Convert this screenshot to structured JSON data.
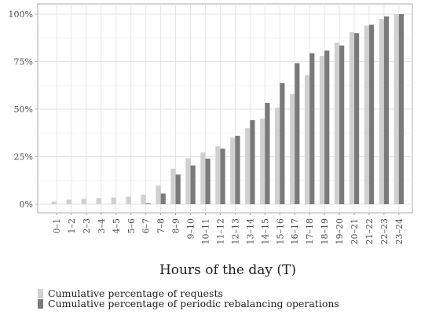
{
  "chart_data": {
    "type": "bar",
    "xlabel": "Hours of the day (T)",
    "ylabel": "",
    "ylim": [
      0,
      100
    ],
    "yticks": [
      0,
      25,
      50,
      75,
      100
    ],
    "ytick_labels": [
      "0%",
      "25%",
      "50%",
      "75%",
      "100%"
    ],
    "grid": true,
    "legend_position": "bottom-left",
    "categories": [
      "0–1",
      "1–2",
      "2–3",
      "3–4",
      "4–5",
      "5–6",
      "6–7",
      "7–8",
      "8–9",
      "9–10",
      "10–11",
      "11–12",
      "12–13",
      "13–14",
      "14–15",
      "15–16",
      "16–17",
      "17–18",
      "18–19",
      "19–20",
      "20–21",
      "21–22",
      "22–23",
      "23–24"
    ],
    "series": [
      {
        "name": "Cumulative percentage of requests",
        "color": "#d0d0d0",
        "values": [
          1.4,
          2.4,
          2.8,
          3.2,
          3.5,
          3.9,
          5.0,
          9.8,
          18.7,
          24.2,
          27.2,
          30.5,
          35.0,
          40.0,
          45.0,
          50.8,
          58.0,
          68.0,
          78.0,
          85.0,
          90.5,
          94.0,
          97.5,
          100.0
        ]
      },
      {
        "name": "Cumulative percentage of periodic rebalancing operations",
        "color": "#7a7a7a",
        "values": [
          0,
          0,
          0,
          0,
          0,
          0,
          0.4,
          5.6,
          15.6,
          20.4,
          24.0,
          29.2,
          36.0,
          44.2,
          53.3,
          63.7,
          74.2,
          79.4,
          80.8,
          83.5,
          90.0,
          94.4,
          98.8,
          100.0
        ]
      }
    ]
  }
}
